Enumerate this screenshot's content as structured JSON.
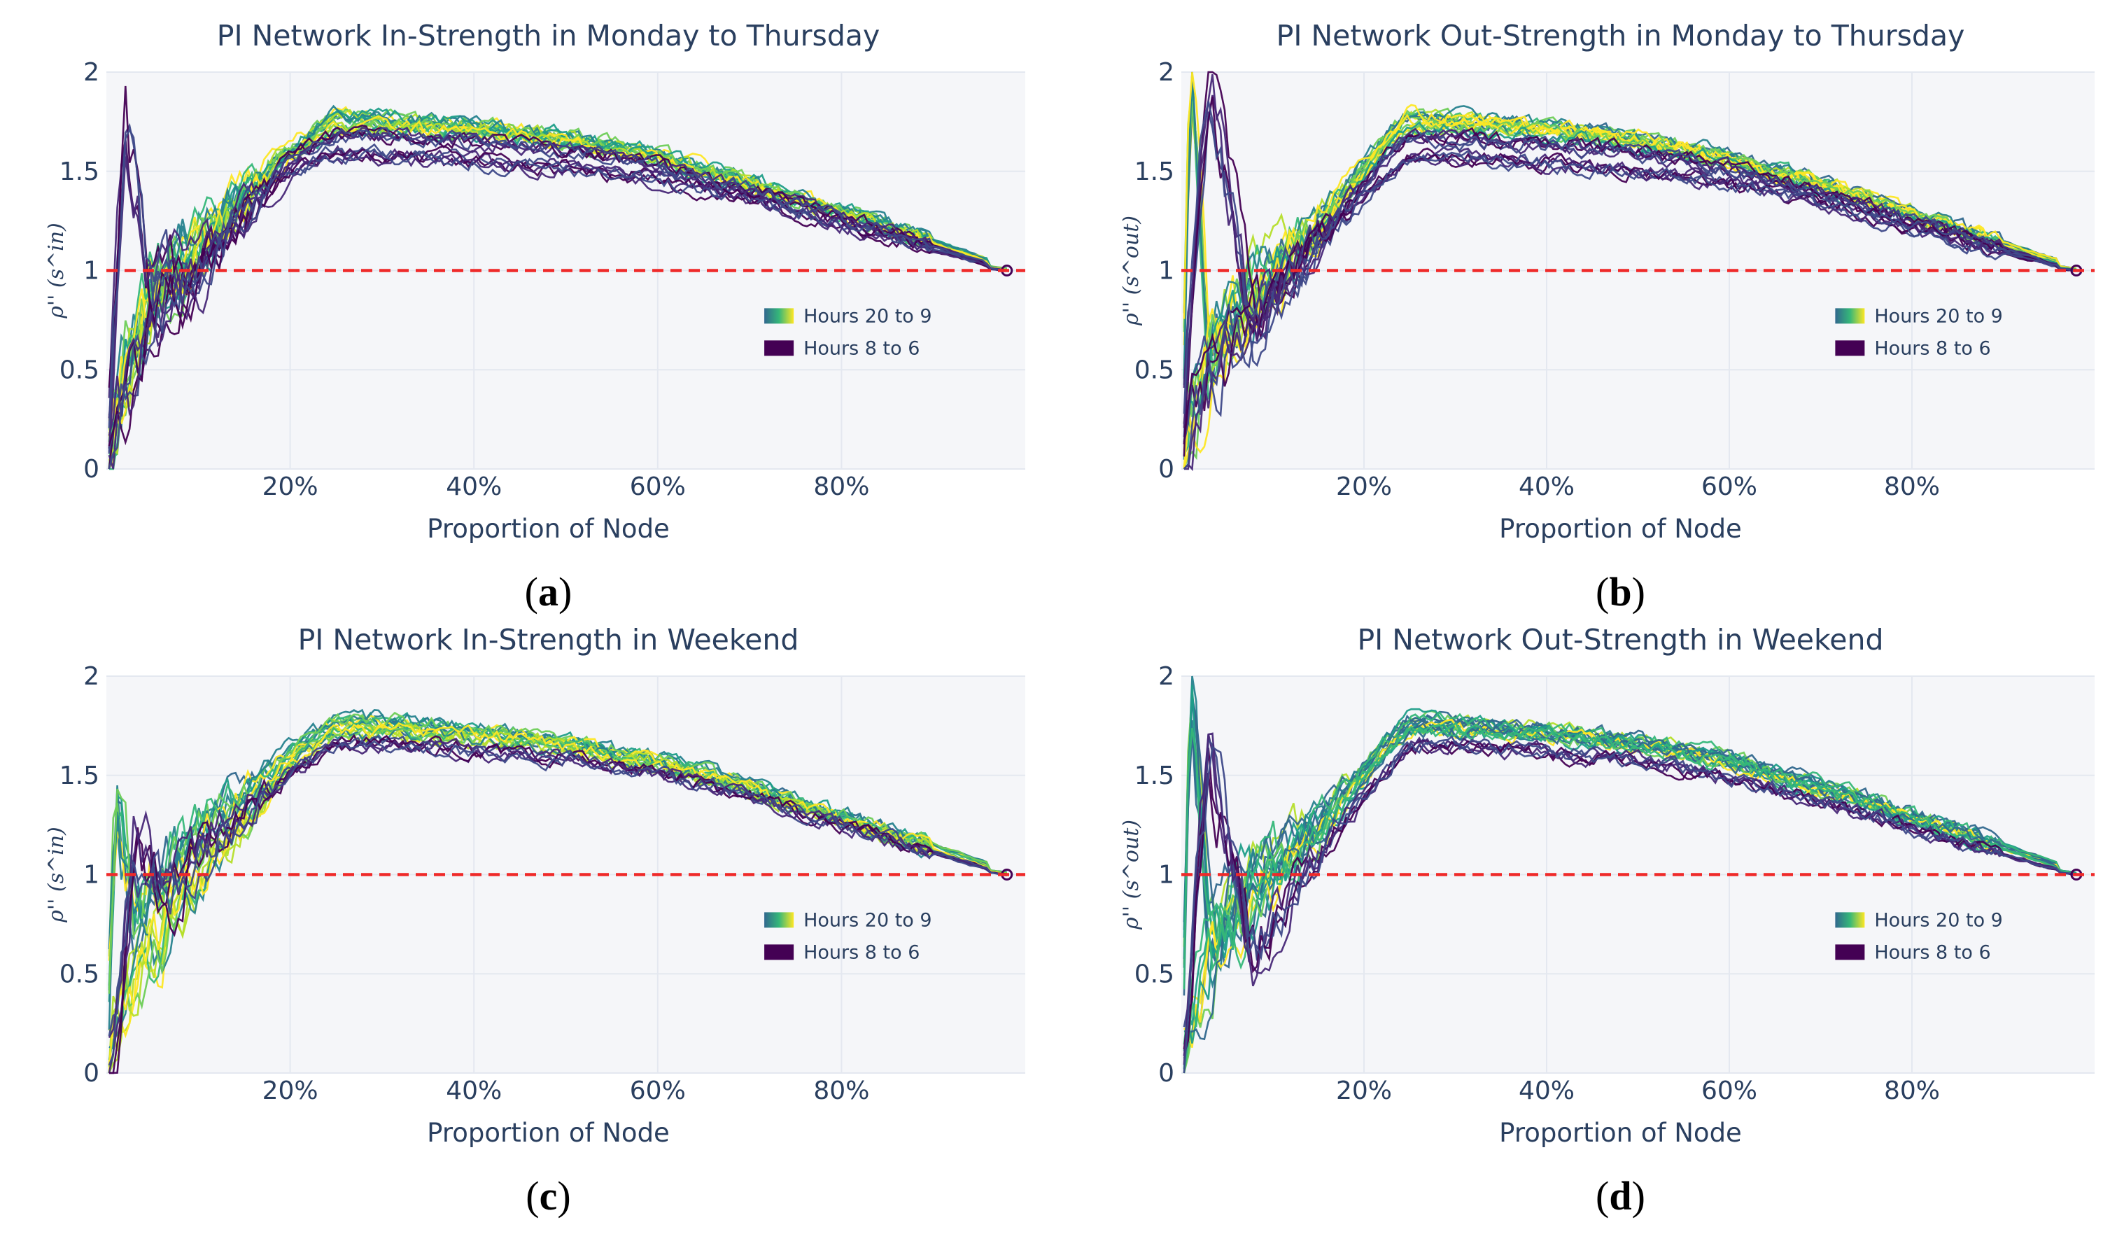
{
  "colors": {
    "plot_bg": "#f5f6f9",
    "grid": "#e4e8f0",
    "reference_line": "#ef2a2a",
    "text": "#2a3f5f",
    "viridis": [
      "#440154",
      "#482878",
      "#3e4989",
      "#31688e",
      "#26828e",
      "#1f9e89",
      "#35b779",
      "#6ece58",
      "#b5de2b",
      "#fde725"
    ]
  },
  "chart_data": [
    {
      "type": "line",
      "title": "PI Network In-Strength in Monday to Thursday",
      "xlabel": "Proportion of Node",
      "ylabel": "ρ'' (s^in)",
      "xlim": [
        0.0,
        1.0
      ],
      "ylim": [
        0,
        2
      ],
      "x_ticks": [
        "20%",
        "40%",
        "60%",
        "80%"
      ],
      "y_ticks": [
        "0",
        "0.5",
        "1",
        "1.5",
        "2"
      ],
      "reference_line": 1,
      "legend": [
        "Hours 20 to 9",
        "Hours 8 to 6"
      ],
      "legend_position": "center-right",
      "panel_label": "a",
      "series": [
        {
          "group": "Hours 20 to 9",
          "x": [
            0.0,
            0.02,
            0.05,
            0.1,
            0.15,
            0.2,
            0.25,
            0.3,
            0.4,
            0.5,
            0.6,
            0.7,
            0.8,
            0.9,
            0.98
          ],
          "values": [
            0.0,
            0.55,
            0.95,
            1.15,
            1.4,
            1.62,
            1.78,
            1.76,
            1.73,
            1.67,
            1.58,
            1.45,
            1.3,
            1.15,
            1.02
          ]
        },
        {
          "group": "Hours 20 to 9",
          "x": [
            0.0,
            0.02,
            0.05,
            0.1,
            0.15,
            0.2,
            0.25,
            0.3,
            0.4,
            0.5,
            0.6,
            0.7,
            0.8,
            0.9,
            0.98
          ],
          "values": [
            0.0,
            0.45,
            0.85,
            1.05,
            1.35,
            1.58,
            1.72,
            1.72,
            1.7,
            1.65,
            1.56,
            1.43,
            1.28,
            1.13,
            1.01
          ]
        },
        {
          "group": "Hours 8 to 6",
          "x": [
            0.0,
            0.02,
            0.05,
            0.1,
            0.15,
            0.2,
            0.25,
            0.3,
            0.4,
            0.5,
            0.6,
            0.7,
            0.8,
            0.9,
            0.98
          ],
          "values": [
            0.0,
            1.7,
            0.9,
            1.0,
            1.3,
            1.5,
            1.6,
            1.58,
            1.55,
            1.52,
            1.46,
            1.36,
            1.24,
            1.1,
            1.0
          ]
        },
        {
          "group": "Hours 8 to 6",
          "x": [
            0.0,
            0.02,
            0.05,
            0.1,
            0.15,
            0.2,
            0.25,
            0.3,
            0.4,
            0.5,
            0.6,
            0.7,
            0.8,
            0.9,
            0.98
          ],
          "values": [
            0.0,
            0.35,
            0.7,
            0.95,
            1.25,
            1.55,
            1.68,
            1.67,
            1.64,
            1.6,
            1.52,
            1.4,
            1.26,
            1.12,
            1.0
          ]
        }
      ]
    },
    {
      "type": "line",
      "title": "PI Network Out-Strength in Monday to Thursday",
      "xlabel": "Proportion of Node",
      "ylabel": "ρ'' (s^out)",
      "xlim": [
        0.0,
        1.0
      ],
      "ylim": [
        0,
        2
      ],
      "x_ticks": [
        "20%",
        "40%",
        "60%",
        "80%"
      ],
      "y_ticks": [
        "0",
        "0.5",
        "1",
        "1.5",
        "2"
      ],
      "reference_line": 1,
      "legend": [
        "Hours 20 to 9",
        "Hours 8 to 6"
      ],
      "legend_position": "center-right",
      "panel_label": "b",
      "series": [
        {
          "group": "Hours 20 to 9",
          "x": [
            0.0,
            0.01,
            0.03,
            0.08,
            0.15,
            0.22,
            0.25,
            0.3,
            0.4,
            0.5,
            0.6,
            0.7,
            0.8,
            0.9,
            0.98
          ],
          "values": [
            0.0,
            2.0,
            0.6,
            0.95,
            1.25,
            1.65,
            1.78,
            1.76,
            1.72,
            1.66,
            1.57,
            1.44,
            1.29,
            1.14,
            1.02
          ]
        },
        {
          "group": "Hours 20 to 9",
          "x": [
            0.0,
            0.01,
            0.03,
            0.08,
            0.15,
            0.22,
            0.25,
            0.3,
            0.4,
            0.5,
            0.6,
            0.7,
            0.8,
            0.9,
            0.98
          ],
          "values": [
            0.0,
            0.3,
            0.55,
            0.85,
            1.2,
            1.6,
            1.72,
            1.72,
            1.69,
            1.64,
            1.55,
            1.42,
            1.27,
            1.12,
            1.01
          ]
        },
        {
          "group": "Hours 8 to 6",
          "x": [
            0.0,
            0.01,
            0.03,
            0.08,
            0.15,
            0.22,
            0.25,
            0.3,
            0.4,
            0.5,
            0.6,
            0.7,
            0.8,
            0.9,
            0.98
          ],
          "values": [
            0.0,
            0.8,
            2.0,
            0.7,
            1.15,
            1.45,
            1.57,
            1.57,
            1.54,
            1.5,
            1.44,
            1.34,
            1.22,
            1.09,
            1.0
          ]
        },
        {
          "group": "Hours 8 to 6",
          "x": [
            0.0,
            0.01,
            0.03,
            0.08,
            0.15,
            0.22,
            0.25,
            0.3,
            0.4,
            0.5,
            0.6,
            0.7,
            0.8,
            0.9,
            0.98
          ],
          "values": [
            0.0,
            0.2,
            0.45,
            0.75,
            1.15,
            1.55,
            1.66,
            1.66,
            1.63,
            1.59,
            1.51,
            1.39,
            1.25,
            1.11,
            1.0
          ]
        }
      ]
    },
    {
      "type": "line",
      "title": "PI Network In-Strength in Weekend",
      "xlabel": "Proportion of Node",
      "ylabel": "ρ'' (s^in)",
      "xlim": [
        0.0,
        1.0
      ],
      "ylim": [
        0,
        2
      ],
      "x_ticks": [
        "20%",
        "40%",
        "60%",
        "80%"
      ],
      "y_ticks": [
        "0",
        "0.5",
        "1",
        "1.5",
        "2"
      ],
      "reference_line": 1,
      "legend": [
        "Hours 20 to 9",
        "Hours 8 to 6"
      ],
      "legend_position": "center-right",
      "panel_label": "c",
      "series": [
        {
          "group": "Hours 20 to 9",
          "x": [
            0.0,
            0.01,
            0.03,
            0.07,
            0.12,
            0.2,
            0.25,
            0.3,
            0.4,
            0.5,
            0.6,
            0.7,
            0.8,
            0.9,
            0.98
          ],
          "values": [
            0.0,
            1.38,
            0.8,
            1.05,
            1.3,
            1.62,
            1.78,
            1.77,
            1.73,
            1.67,
            1.58,
            1.45,
            1.3,
            1.15,
            1.02
          ]
        },
        {
          "group": "Hours 20 to 9",
          "x": [
            0.0,
            0.01,
            0.03,
            0.07,
            0.12,
            0.2,
            0.25,
            0.3,
            0.4,
            0.5,
            0.6,
            0.7,
            0.8,
            0.9,
            0.98
          ],
          "values": [
            0.0,
            0.3,
            0.5,
            0.75,
            1.1,
            1.55,
            1.72,
            1.71,
            1.69,
            1.64,
            1.55,
            1.42,
            1.27,
            1.12,
            1.01
          ]
        },
        {
          "group": "Hours 8 to 6",
          "x": [
            0.0,
            0.01,
            0.03,
            0.07,
            0.12,
            0.2,
            0.25,
            0.3,
            0.4,
            0.5,
            0.6,
            0.7,
            0.8,
            0.9,
            0.98
          ],
          "values": [
            0.0,
            0.2,
            1.15,
            0.9,
            1.2,
            1.5,
            1.66,
            1.66,
            1.62,
            1.58,
            1.51,
            1.39,
            1.25,
            1.11,
            1.0
          ]
        }
      ]
    },
    {
      "type": "line",
      "title": "PI Network Out-Strength in Weekend",
      "xlabel": "Proportion of Node",
      "ylabel": "ρ'' (s^out)",
      "xlim": [
        0.0,
        1.0
      ],
      "ylim": [
        0,
        2
      ],
      "x_ticks": [
        "20%",
        "40%",
        "60%",
        "80%"
      ],
      "y_ticks": [
        "0",
        "0.5",
        "1",
        "1.5",
        "2"
      ],
      "reference_line": 1,
      "legend": [
        "Hours 20 to 9",
        "Hours 8 to 6"
      ],
      "legend_position": "center-right",
      "panel_label": "d",
      "series": [
        {
          "group": "Hours 20 to 9",
          "x": [
            0.0,
            0.01,
            0.03,
            0.08,
            0.15,
            0.22,
            0.25,
            0.3,
            0.4,
            0.5,
            0.6,
            0.7,
            0.8,
            0.9,
            0.98
          ],
          "values": [
            0.0,
            2.0,
            0.7,
            1.0,
            1.3,
            1.65,
            1.78,
            1.77,
            1.73,
            1.67,
            1.58,
            1.45,
            1.3,
            1.15,
            1.02
          ]
        },
        {
          "group": "Hours 20 to 9",
          "x": [
            0.0,
            0.01,
            0.03,
            0.08,
            0.15,
            0.22,
            0.25,
            0.3,
            0.4,
            0.5,
            0.6,
            0.7,
            0.8,
            0.9,
            0.98
          ],
          "values": [
            0.0,
            0.25,
            0.55,
            0.85,
            1.2,
            1.6,
            1.73,
            1.72,
            1.7,
            1.65,
            1.56,
            1.43,
            1.28,
            1.13,
            1.01
          ]
        },
        {
          "group": "Hours 8 to 6",
          "x": [
            0.0,
            0.01,
            0.03,
            0.08,
            0.15,
            0.22,
            0.25,
            0.3,
            0.4,
            0.5,
            0.6,
            0.7,
            0.8,
            0.9,
            0.98
          ],
          "values": [
            0.0,
            0.5,
            1.6,
            0.6,
            1.1,
            1.5,
            1.66,
            1.66,
            1.62,
            1.58,
            1.5,
            1.38,
            1.24,
            1.1,
            1.0
          ]
        }
      ]
    }
  ]
}
